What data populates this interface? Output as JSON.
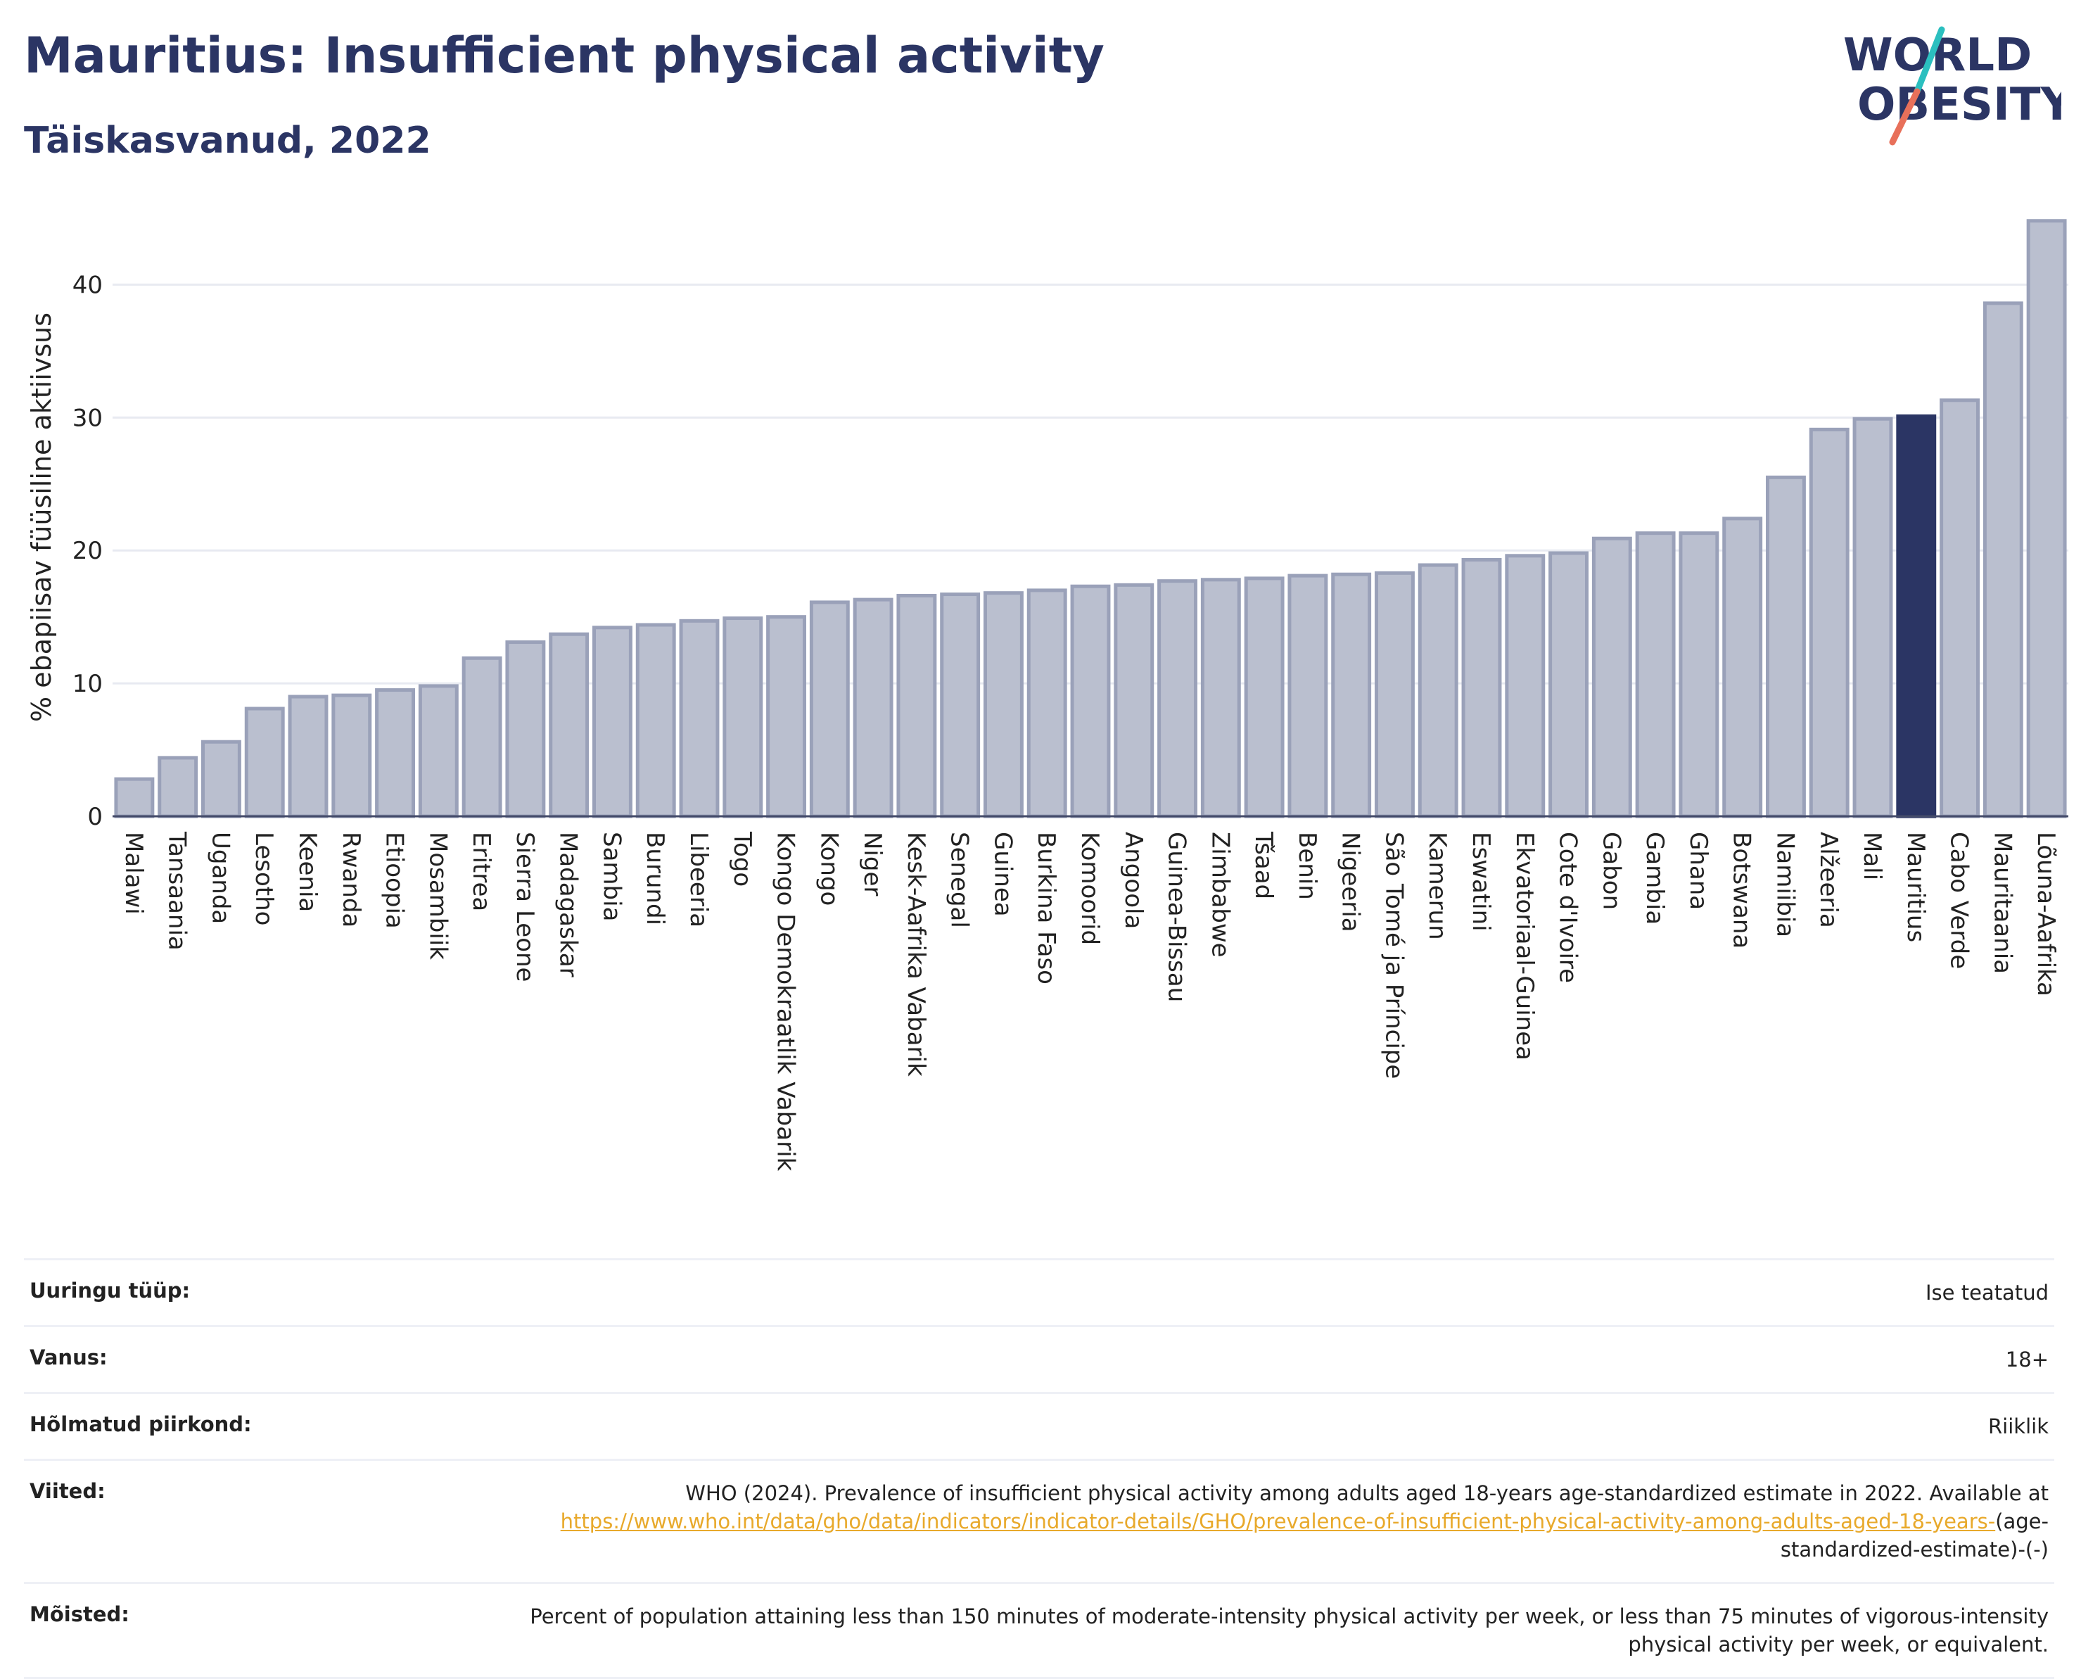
{
  "header": {
    "title": "Mauritius: Insufficient physical activity",
    "subtitle": "Täiskasvanud, 2022"
  },
  "logo": {
    "line1": "WORLD",
    "line2": "OBESITY",
    "colors": {
      "text": "#2b3564",
      "slash_teal": "#2bbfbf",
      "slash_red": "#e8705a"
    }
  },
  "chart_data": {
    "type": "bar",
    "ylabel": "% ebapiisav füüsiline aktiivsus",
    "ylim": [
      0,
      45
    ],
    "yticks": [
      0,
      10,
      20,
      30,
      40
    ],
    "grid": true,
    "highlight": "Mauritius",
    "colors": {
      "bar": "#babfcf",
      "bar_edge": "#9aa1b9",
      "highlight": "#2b3564",
      "grid": "#e8eaf1"
    },
    "categories": [
      "Malawi",
      "Tansaania",
      "Uganda",
      "Lesotho",
      "Keenia",
      "Rwanda",
      "Etioopia",
      "Mosambiik",
      "Eritrea",
      "Sierra Leone",
      "Madagaskar",
      "Sambia",
      "Burundi",
      "Libeeria",
      "Togo",
      "Kongo Demokraatlik Vabarik",
      "Kongo",
      "Niger",
      "Kesk-Aafrika Vabarik",
      "Senegal",
      "Guinea",
      "Burkina Faso",
      "Komoorid",
      "Angoola",
      "Guinea-Bissau",
      "Zimbabwe",
      "Tšaad",
      "Benin",
      "Nigeeria",
      "São Tomé ja Príncipe",
      "Kamerun",
      "Eswatini",
      "Ekvatoriaal-Guinea",
      "Cote d'Ivoire",
      "Gabon",
      "Gambia",
      "Ghana",
      "Botswana",
      "Namiibia",
      "Alžeeria",
      "Mali",
      "Mauritius",
      "Cabo Verde",
      "Mauritaania",
      "Lõuna-Aafrika"
    ],
    "values": [
      2.8,
      4.4,
      5.6,
      8.1,
      9.0,
      9.1,
      9.5,
      9.8,
      11.9,
      13.1,
      13.7,
      14.2,
      14.4,
      14.7,
      14.9,
      15.0,
      16.1,
      16.3,
      16.6,
      16.7,
      16.8,
      17.0,
      17.3,
      17.4,
      17.7,
      17.8,
      17.9,
      18.1,
      18.2,
      18.3,
      18.9,
      19.3,
      19.6,
      19.8,
      20.9,
      21.3,
      21.3,
      22.4,
      25.5,
      29.1,
      29.9,
      30.1,
      31.3,
      38.6,
      44.8
    ]
  },
  "info": [
    {
      "key": "Uuringu tüüp:",
      "value": "Ise teatatud"
    },
    {
      "key": "Vanus:",
      "value": "18+"
    },
    {
      "key": "Hõlmatud piirkond:",
      "value": "Riiklik"
    },
    {
      "key": "Viited:",
      "value_pre": "WHO (2024). Prevalence of insufficient physical activity among adults aged 18-years age-standardized estimate in 2022. Available at",
      "link": "https://www.who.int/data/gho/data/indicators/indicator-details/GHO/prevalence-of-insufficient-physical-activity-among-adults-aged-18-years-",
      "value_post": "(age-standardized-estimate)-(-)"
    },
    {
      "key": "Mõisted:",
      "value": "Percent of population attaining less than 150 minutes of moderate-intensity physical activity per week, or less than 75 minutes of vigorous-intensity physical activity per week, or equivalent."
    }
  ]
}
